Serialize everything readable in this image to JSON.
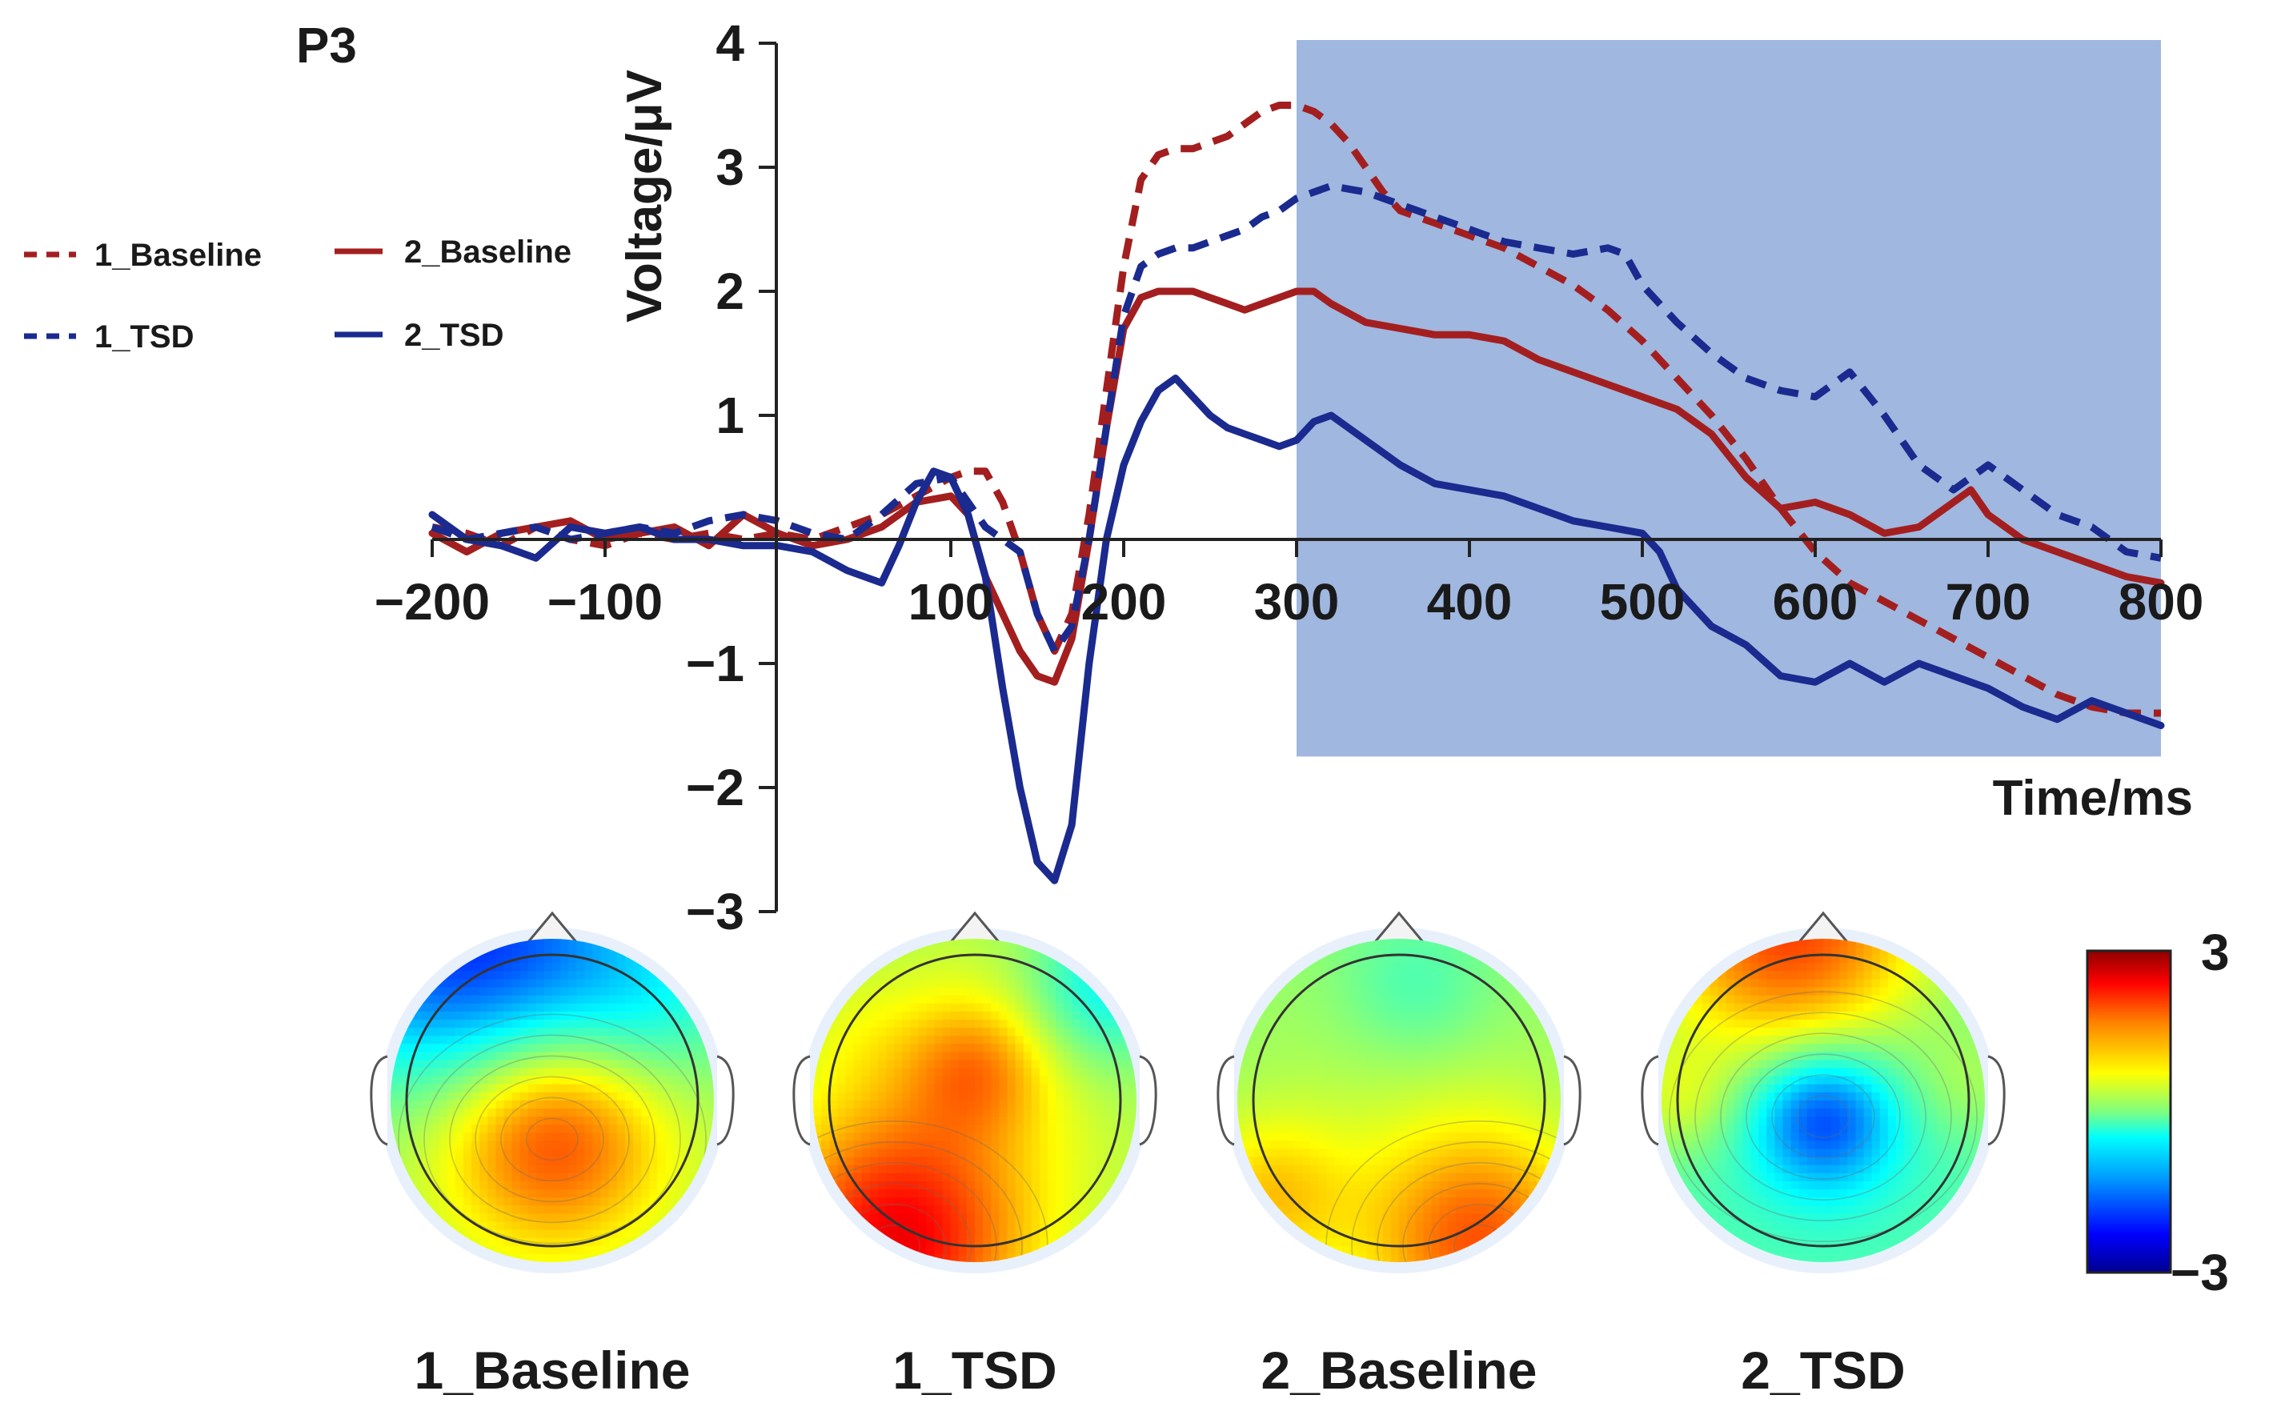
{
  "chart_data": {
    "type": "line",
    "panel_label": "P3",
    "ylabel": "Voltage/μV",
    "xlabel": "Time/ms",
    "xlim": [
      -200,
      800
    ],
    "ylim": [
      -3,
      4
    ],
    "x_ticks": [
      -200,
      -100,
      100,
      200,
      300,
      400,
      500,
      600,
      700,
      800
    ],
    "x_tick_labels": [
      "−200",
      "−100",
      "100",
      "200",
      "300",
      "400",
      "500",
      "600",
      "700",
      "800"
    ],
    "y_ticks": [
      4,
      3,
      2,
      1,
      -1,
      -2,
      -3
    ],
    "y_tick_labels": [
      "4",
      "3",
      "2",
      "1",
      "−1",
      "−2",
      "−3"
    ],
    "highlight_window": [
      300,
      800
    ],
    "highlight_window_ylim": [
      -1.75,
      4
    ],
    "colors": {
      "baseline": "#a31f1f",
      "tsd": "#1a2a8f",
      "highlight": "#7c9bd2"
    },
    "series": [
      {
        "name": "1_Baseline",
        "style": "dashed",
        "color_key": "baseline",
        "x": [
          -200,
          -180,
          -160,
          -140,
          -120,
          -100,
          -80,
          -60,
          -40,
          -20,
          0,
          20,
          40,
          60,
          80,
          100,
          110,
          120,
          130,
          140,
          150,
          160,
          170,
          180,
          190,
          200,
          210,
          220,
          230,
          240,
          250,
          260,
          270,
          280,
          290,
          300,
          310,
          320,
          330,
          340,
          350,
          360,
          370,
          380,
          400,
          420,
          440,
          460,
          480,
          500,
          520,
          540,
          560,
          580,
          600,
          620,
          640,
          660,
          680,
          700,
          720,
          740,
          760,
          780,
          800
        ],
        "values": [
          0.1,
          0.05,
          -0.05,
          0.1,
          0.0,
          -0.05,
          0.05,
          0.0,
          0.05,
          0.0,
          0.05,
          0.0,
          0.1,
          0.2,
          0.35,
          0.5,
          0.55,
          0.55,
          0.3,
          -0.1,
          -0.6,
          -0.9,
          -0.6,
          0.2,
          1.2,
          2.2,
          2.9,
          3.1,
          3.15,
          3.15,
          3.2,
          3.25,
          3.35,
          3.45,
          3.5,
          3.5,
          3.45,
          3.35,
          3.2,
          3.0,
          2.8,
          2.65,
          2.6,
          2.55,
          2.45,
          2.35,
          2.2,
          2.05,
          1.85,
          1.6,
          1.3,
          1.0,
          0.65,
          0.25,
          -0.1,
          -0.35,
          -0.5,
          -0.65,
          -0.8,
          -0.95,
          -1.1,
          -1.25,
          -1.35,
          -1.4,
          -1.4
        ]
      },
      {
        "name": "2_Baseline",
        "style": "solid",
        "color_key": "baseline",
        "x": [
          -200,
          -180,
          -160,
          -140,
          -120,
          -100,
          -80,
          -60,
          -40,
          -20,
          0,
          20,
          40,
          60,
          80,
          100,
          110,
          120,
          130,
          140,
          150,
          160,
          170,
          180,
          190,
          200,
          210,
          220,
          230,
          240,
          250,
          260,
          270,
          280,
          290,
          300,
          310,
          320,
          340,
          360,
          380,
          400,
          420,
          440,
          460,
          480,
          500,
          520,
          540,
          560,
          580,
          600,
          620,
          640,
          660,
          680,
          690,
          700,
          720,
          740,
          760,
          780,
          800
        ],
        "values": [
          0.05,
          -0.1,
          0.05,
          0.1,
          0.15,
          0.0,
          0.05,
          0.1,
          -0.05,
          0.2,
          0.05,
          -0.05,
          0.0,
          0.1,
          0.3,
          0.35,
          0.2,
          -0.3,
          -0.6,
          -0.9,
          -1.1,
          -1.15,
          -0.8,
          0.0,
          0.9,
          1.7,
          1.95,
          2.0,
          2.0,
          2.0,
          1.95,
          1.9,
          1.85,
          1.9,
          1.95,
          2.0,
          2.0,
          1.9,
          1.75,
          1.7,
          1.65,
          1.65,
          1.6,
          1.45,
          1.35,
          1.25,
          1.15,
          1.05,
          0.85,
          0.5,
          0.25,
          0.3,
          0.2,
          0.05,
          0.1,
          0.3,
          0.4,
          0.2,
          0.0,
          -0.1,
          -0.2,
          -0.3,
          -0.35
        ]
      },
      {
        "name": "1_TSD",
        "style": "dashed",
        "color_key": "tsd",
        "x": [
          -200,
          -180,
          -160,
          -140,
          -120,
          -100,
          -80,
          -60,
          -40,
          -20,
          0,
          20,
          40,
          60,
          80,
          100,
          110,
          120,
          130,
          140,
          150,
          160,
          170,
          180,
          190,
          200,
          210,
          220,
          230,
          240,
          250,
          260,
          270,
          280,
          290,
          300,
          310,
          320,
          340,
          360,
          380,
          400,
          420,
          440,
          460,
          480,
          490,
          500,
          520,
          540,
          560,
          580,
          600,
          620,
          640,
          660,
          680,
          700,
          720,
          740,
          760,
          780,
          800
        ],
        "values": [
          0.1,
          0.0,
          0.05,
          0.1,
          0.0,
          0.05,
          0.1,
          0.05,
          0.15,
          0.2,
          0.15,
          0.05,
          0.0,
          0.2,
          0.45,
          0.5,
          0.3,
          0.1,
          0.0,
          -0.1,
          -0.6,
          -0.9,
          -0.7,
          0.0,
          0.9,
          1.8,
          2.2,
          2.3,
          2.35,
          2.35,
          2.4,
          2.45,
          2.5,
          2.6,
          2.65,
          2.75,
          2.8,
          2.85,
          2.8,
          2.7,
          2.6,
          2.5,
          2.4,
          2.35,
          2.3,
          2.35,
          2.3,
          2.05,
          1.75,
          1.5,
          1.3,
          1.2,
          1.15,
          1.35,
          1.0,
          0.6,
          0.4,
          0.6,
          0.4,
          0.2,
          0.1,
          -0.1,
          -0.15
        ]
      },
      {
        "name": "2_TSD",
        "style": "solid",
        "color_key": "tsd",
        "x": [
          -200,
          -180,
          -160,
          -140,
          -120,
          -100,
          -80,
          -60,
          -40,
          -20,
          0,
          20,
          40,
          60,
          70,
          80,
          90,
          100,
          110,
          120,
          130,
          140,
          150,
          160,
          170,
          180,
          190,
          200,
          210,
          220,
          230,
          240,
          250,
          260,
          270,
          280,
          290,
          300,
          310,
          320,
          340,
          360,
          380,
          400,
          420,
          440,
          460,
          480,
          500,
          510,
          520,
          540,
          560,
          580,
          600,
          620,
          640,
          660,
          680,
          700,
          720,
          740,
          760,
          780,
          800
        ],
        "values": [
          0.2,
          0.0,
          -0.05,
          -0.15,
          0.1,
          0.05,
          0.1,
          0.0,
          0.0,
          -0.05,
          -0.05,
          -0.1,
          -0.25,
          -0.35,
          -0.05,
          0.3,
          0.55,
          0.5,
          0.2,
          -0.3,
          -1.2,
          -2.0,
          -2.6,
          -2.75,
          -2.3,
          -1.0,
          0.0,
          0.6,
          0.95,
          1.2,
          1.3,
          1.15,
          1.0,
          0.9,
          0.85,
          0.8,
          0.75,
          0.8,
          0.95,
          1.0,
          0.8,
          0.6,
          0.45,
          0.4,
          0.35,
          0.25,
          0.15,
          0.1,
          0.05,
          -0.1,
          -0.4,
          -0.7,
          -0.85,
          -1.1,
          -1.15,
          -1.0,
          -1.15,
          -1.0,
          -1.1,
          -1.2,
          -1.35,
          -1.45,
          -1.3,
          -1.4,
          -1.5
        ]
      }
    ],
    "legend": [
      {
        "label": "1_Baseline",
        "style": "dashed",
        "color_key": "baseline"
      },
      {
        "label": "2_Baseline",
        "style": "solid",
        "color_key": "baseline"
      },
      {
        "label": "1_TSD",
        "style": "dashed",
        "color_key": "tsd"
      },
      {
        "label": "2_TSD",
        "style": "solid",
        "color_key": "tsd"
      }
    ],
    "topomaps": [
      {
        "label": "1_Baseline",
        "blobs": [
          {
            "cx": 0.5,
            "cy": 0.58,
            "r": 0.95,
            "value": 0.6
          },
          {
            "cx": 0.5,
            "cy": 0.62,
            "r": 0.45,
            "value": 1.3
          },
          {
            "cx": 0.15,
            "cy": 0.05,
            "r": 0.6,
            "value": -1.9
          },
          {
            "cx": 0.55,
            "cy": 0.05,
            "r": 0.5,
            "value": -0.9
          },
          {
            "cx": 0.85,
            "cy": 0.2,
            "r": 0.4,
            "value": -0.6
          }
        ]
      },
      {
        "label": "1_TSD",
        "blobs": [
          {
            "cx": 0.5,
            "cy": 0.5,
            "r": 0.95,
            "value": 0.6
          },
          {
            "cx": 0.25,
            "cy": 0.95,
            "r": 0.55,
            "value": 2.0
          },
          {
            "cx": 0.5,
            "cy": 0.4,
            "r": 0.3,
            "value": 0.9
          },
          {
            "cx": 0.9,
            "cy": 0.15,
            "r": 0.35,
            "value": -1.0
          },
          {
            "cx": 0.15,
            "cy": 0.3,
            "r": 0.3,
            "value": 0.2
          }
        ]
      },
      {
        "label": "2_Baseline",
        "blobs": [
          {
            "cx": 0.5,
            "cy": 0.5,
            "r": 0.95,
            "value": 0.3
          },
          {
            "cx": 0.75,
            "cy": 0.95,
            "r": 0.5,
            "value": 1.6
          },
          {
            "cx": 0.55,
            "cy": 0.15,
            "r": 0.35,
            "value": -0.5
          },
          {
            "cx": 0.1,
            "cy": 0.8,
            "r": 0.35,
            "value": 0.9
          }
        ]
      },
      {
        "label": "2_TSD",
        "blobs": [
          {
            "cx": 0.5,
            "cy": 0.55,
            "r": 0.95,
            "value": -0.5
          },
          {
            "cx": 0.5,
            "cy": 0.55,
            "r": 0.3,
            "value": -1.6
          },
          {
            "cx": 0.4,
            "cy": 0.0,
            "r": 0.6,
            "value": 2.1
          },
          {
            "cx": 0.05,
            "cy": 0.5,
            "r": 0.25,
            "value": 0.6
          },
          {
            "cx": 0.95,
            "cy": 0.45,
            "r": 0.25,
            "value": 0.4
          }
        ]
      }
    ],
    "colorbar": {
      "min": -3,
      "max": 3,
      "max_label": "3",
      "min_label": "−3"
    }
  }
}
